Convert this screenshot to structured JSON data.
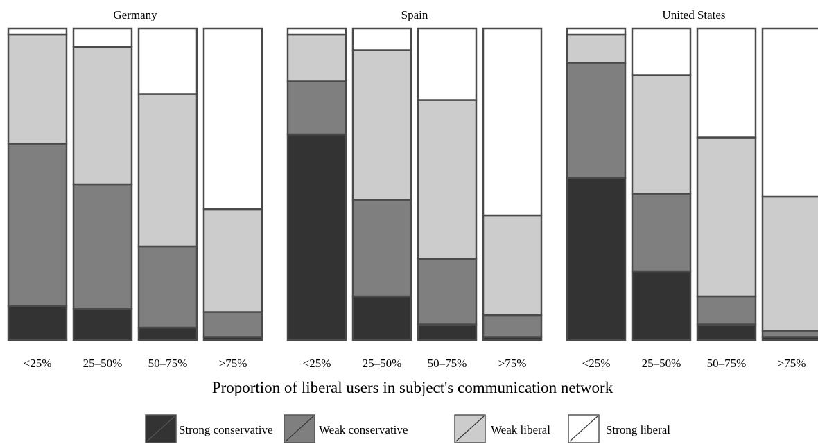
{
  "chart_data": {
    "type": "bar",
    "stacked": "percent",
    "xlabel": "Proportion of liberal users in subject's communication network",
    "ylabel": "",
    "categories": [
      "<25%",
      "25–50%",
      "50–75%",
      ">75%"
    ],
    "series_names": [
      "Strong conservative",
      "Weak conservative",
      "Weak liberal",
      "Strong liberal"
    ],
    "colors": [
      "#333333",
      "#7f7f7f",
      "#cccccc",
      "#ffffff"
    ],
    "grid": false,
    "legend_position": "bottom",
    "panels": [
      {
        "title": "Germany",
        "series": [
          {
            "name": "Strong conservative",
            "values": [
              11,
              10,
              4,
              1
            ]
          },
          {
            "name": "Weak conservative",
            "values": [
              52,
              40,
              26,
              8
            ]
          },
          {
            "name": "Weak liberal",
            "values": [
              35,
              44,
              49,
              33
            ]
          },
          {
            "name": "Strong liberal",
            "values": [
              2,
              6,
              21,
              58
            ]
          }
        ]
      },
      {
        "title": "Spain",
        "series": [
          {
            "name": "Strong conservative",
            "values": [
              66,
              14,
              5,
              1
            ]
          },
          {
            "name": "Weak conservative",
            "values": [
              17,
              31,
              21,
              7
            ]
          },
          {
            "name": "Weak liberal",
            "values": [
              15,
              48,
              51,
              32
            ]
          },
          {
            "name": "Strong liberal",
            "values": [
              2,
              7,
              23,
              60
            ]
          }
        ]
      },
      {
        "title": "United States",
        "series": [
          {
            "name": "Strong conservative",
            "values": [
              52,
              22,
              5,
              1
            ]
          },
          {
            "name": "Weak conservative",
            "values": [
              37,
              25,
              9,
              2
            ]
          },
          {
            "name": "Weak liberal",
            "values": [
              9,
              38,
              51,
              43
            ]
          },
          {
            "name": "Strong liberal",
            "values": [
              2,
              15,
              35,
              54
            ]
          }
        ]
      }
    ]
  }
}
